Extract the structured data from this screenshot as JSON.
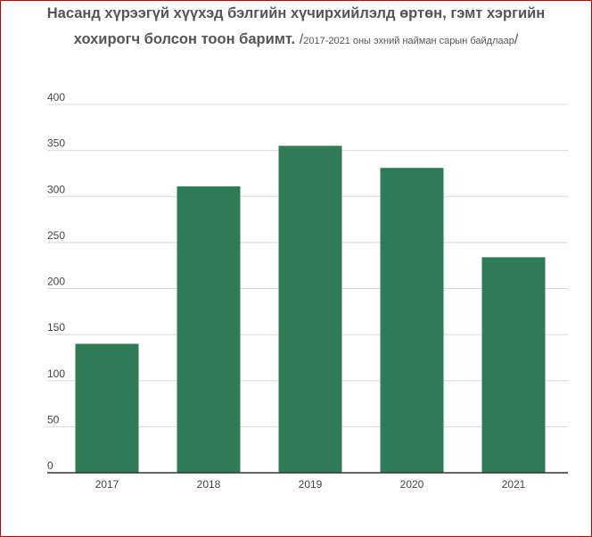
{
  "title": {
    "line1": "Насанд хүрээгүй хүүхэд бэлгийн хүчирхийлэлд өртөн, гэмт хэргийн",
    "line2_main": "хохирогч болсон тоон баримт.",
    "line2_slash_open": "/",
    "line2_sub": "2017-2021 оны эхний найман сарын байдлаар",
    "line2_slash_close": "/"
  },
  "chart_data": {
    "type": "bar",
    "categories": [
      "2017",
      "2018",
      "2019",
      "2020",
      "2021"
    ],
    "values": [
      140,
      311,
      355,
      331,
      234
    ],
    "ylim": [
      0,
      400
    ],
    "yticks": [
      "0",
      "50",
      "100",
      "150",
      "200",
      "250",
      "300",
      "350",
      "400"
    ],
    "grid": true,
    "colors": {
      "bar": "#2e7b55",
      "grid": "#d9d9d9",
      "axis": "#333333"
    }
  }
}
